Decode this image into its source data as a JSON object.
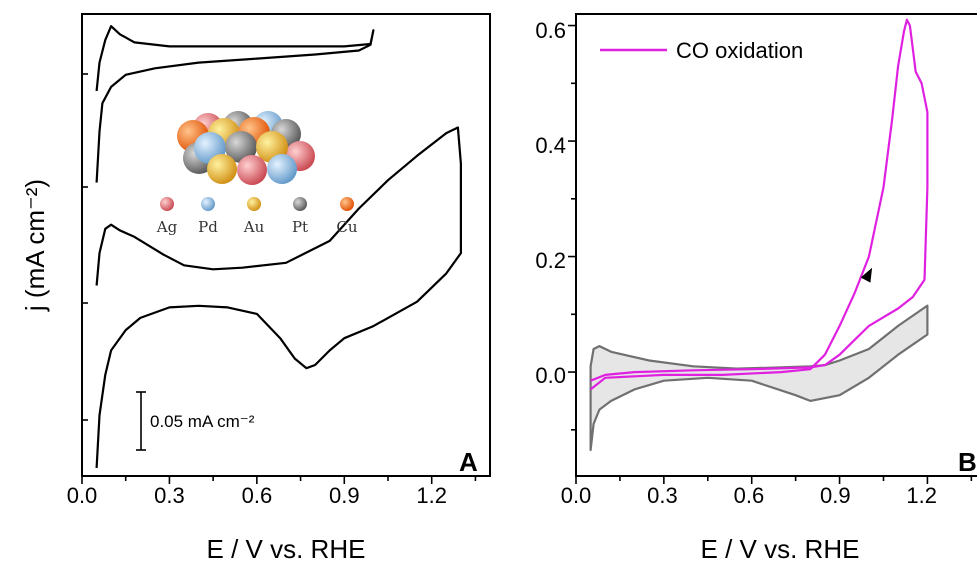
{
  "chart_data": [
    {
      "panel": "A",
      "type": "line",
      "xlabel": "E / V vs. RHE",
      "ylabel": "j (mA cm⁻²)",
      "xlim": [
        0.0,
        1.4
      ],
      "xticks": [
        "0.0",
        "0.3",
        "0.6",
        "0.9",
        "1.2"
      ],
      "scale_bar": {
        "text": "0.05 mA cm⁻²",
        "value": 0.05
      },
      "inset_legend": [
        "Ag",
        "Pd",
        "Au",
        "Pt",
        "Cu"
      ],
      "series": [
        {
          "x": [
            0.05,
            0.06,
            0.08,
            0.1,
            0.13,
            0.18,
            0.3,
            0.5,
            0.7,
            0.9,
            0.99,
            1.0,
            0.99,
            0.95,
            0.8,
            0.6,
            0.4,
            0.25,
            0.15,
            0.1,
            0.07,
            0.06,
            0.05
          ],
          "y": [
            0.35,
            0.385,
            0.413,
            0.43,
            0.42,
            0.41,
            0.405,
            0.405,
            0.405,
            0.405,
            0.408,
            0.425,
            0.407,
            0.4,
            0.395,
            0.39,
            0.385,
            0.378,
            0.37,
            0.355,
            0.335,
            0.3,
            0.237
          ]
        },
        {
          "x": [
            0.05,
            0.06,
            0.08,
            0.1,
            0.13,
            0.18,
            0.28,
            0.35,
            0.45,
            0.55,
            0.7,
            0.85,
            0.95,
            1.05,
            1.15,
            1.25,
            1.29,
            1.3,
            1.3,
            1.25,
            1.15,
            1.0,
            0.9,
            0.85,
            0.8,
            0.77,
            0.73,
            0.68,
            0.6,
            0.5,
            0.4,
            0.3,
            0.2,
            0.15,
            0.1,
            0.08,
            0.06,
            0.05
          ],
          "y": [
            0.11,
            0.15,
            0.18,
            0.185,
            0.178,
            0.17,
            0.148,
            0.135,
            0.13,
            0.132,
            0.138,
            0.165,
            0.205,
            0.24,
            0.27,
            0.298,
            0.305,
            0.26,
            0.15,
            0.125,
            0.09,
            0.06,
            0.045,
            0.03,
            0.012,
            0.008,
            0.02,
            0.045,
            0.075,
            0.083,
            0.085,
            0.083,
            0.07,
            0.055,
            0.03,
            0.0,
            -0.05,
            -0.115
          ]
        }
      ]
    },
    {
      "panel": "B",
      "type": "line",
      "xlabel": "E / V vs. RHE",
      "xlim": [
        0.0,
        1.4
      ],
      "ylim": [
        -0.18,
        0.62
      ],
      "xticks": [
        "0.0",
        "0.3",
        "0.6",
        "0.9",
        "1.2"
      ],
      "yticks": [
        "0.0",
        "0.2",
        "0.4",
        "0.6"
      ],
      "legend": {
        "position": "top-left"
      },
      "series": [
        {
          "name": "CO oxidation",
          "color": "#e020e0",
          "x": [
            0.05,
            0.1,
            0.3,
            0.5,
            0.7,
            0.8,
            0.85,
            0.9,
            0.95,
            1.0,
            1.05,
            1.08,
            1.1,
            1.12,
            1.13,
            1.14,
            1.16,
            1.18,
            1.2,
            1.2,
            1.19,
            1.15,
            1.1,
            1.05,
            1.0,
            0.95,
            0.9,
            0.85,
            0.8,
            0.6,
            0.4,
            0.2,
            0.1,
            0.05
          ],
          "y": [
            -0.03,
            -0.01,
            -0.005,
            -0.005,
            0.0,
            0.005,
            0.03,
            0.08,
            0.135,
            0.2,
            0.32,
            0.44,
            0.53,
            0.59,
            0.61,
            0.6,
            0.52,
            0.5,
            0.45,
            0.32,
            0.16,
            0.13,
            0.11,
            0.095,
            0.08,
            0.055,
            0.03,
            0.012,
            0.008,
            0.005,
            0.003,
            0.0,
            -0.005,
            -0.015
          ]
        },
        {
          "name": "",
          "color": "#707070",
          "fill": "#e6e6e6",
          "x": [
            0.05,
            0.06,
            0.08,
            0.12,
            0.2,
            0.3,
            0.45,
            0.6,
            0.75,
            0.8,
            0.9,
            1.0,
            1.1,
            1.2,
            1.2,
            1.1,
            1.0,
            0.9,
            0.85,
            0.8,
            0.7,
            0.55,
            0.4,
            0.25,
            0.12,
            0.08,
            0.06,
            0.05
          ],
          "y": [
            -0.135,
            -0.09,
            -0.065,
            -0.05,
            -0.03,
            -0.015,
            -0.01,
            -0.015,
            -0.04,
            -0.05,
            -0.04,
            -0.01,
            0.03,
            0.065,
            0.115,
            0.08,
            0.04,
            0.02,
            0.012,
            0.01,
            0.008,
            0.006,
            0.01,
            0.02,
            0.035,
            0.045,
            0.04,
            0.01
          ]
        }
      ],
      "arrow": {
        "x": 1.0,
        "y": 0.17
      }
    }
  ],
  "panel_labels": [
    "A",
    "B"
  ]
}
